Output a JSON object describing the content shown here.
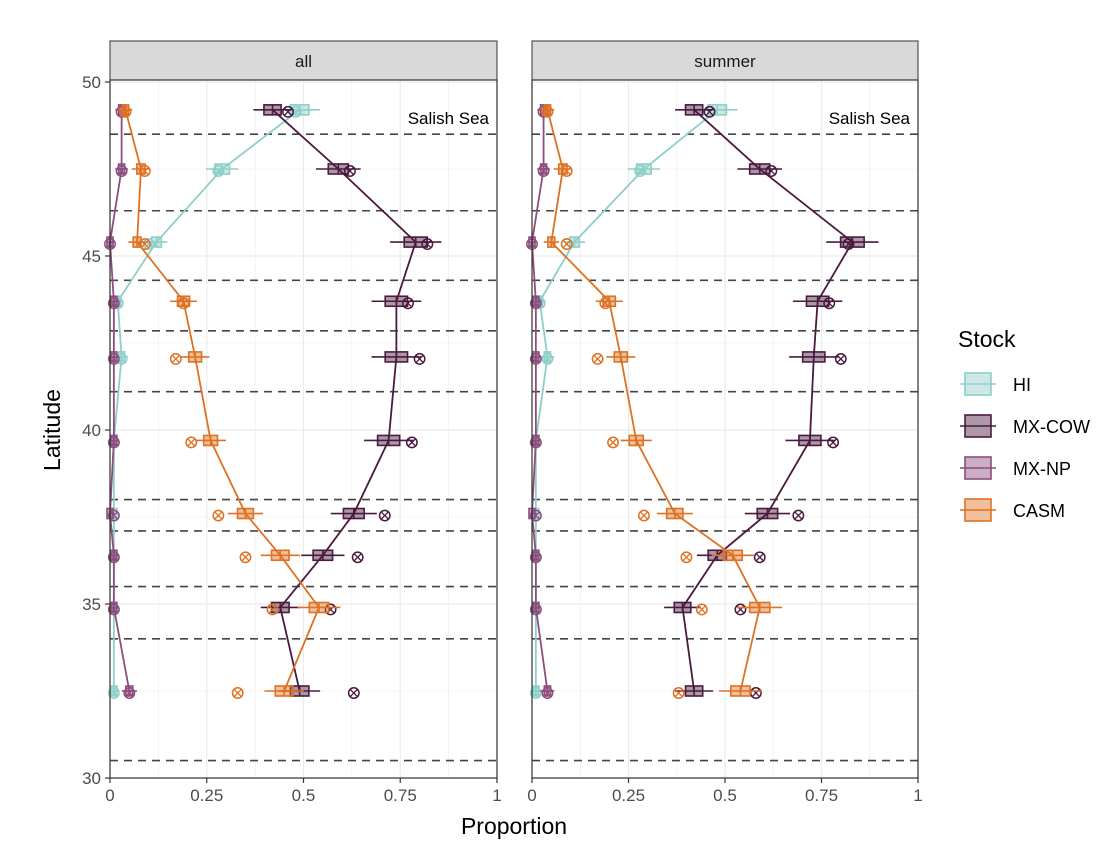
{
  "chart_data": {
    "type": "scatter",
    "xlabel": "Proportion",
    "ylabel": "Latitude",
    "xlim": [
      0,
      1
    ],
    "ylim": [
      30,
      52
    ],
    "x_ticks": [
      "0",
      "0.25",
      "0.5",
      "0.75",
      "1"
    ],
    "y_ticks": [
      "30",
      "35",
      "40",
      "45",
      "50"
    ],
    "grid": true,
    "legend_position": "right",
    "legend": {
      "title": "Stock",
      "entries": [
        {
          "name": "HI",
          "color": "#8ecfc9"
        },
        {
          "name": "MX-COW",
          "color": "#4a1a3f"
        },
        {
          "name": "MX-NP",
          "color": "#8c4e7e"
        },
        {
          "name": "CASM",
          "color": "#de7224"
        }
      ]
    },
    "region_label": "Salish Sea",
    "dashed_lines_latitude": [
      48.5,
      46.3,
      44.3,
      42.85,
      41.1,
      38.0,
      37.1,
      35.5,
      34.0,
      30.5
    ],
    "latitudes": [
      49.2,
      47.5,
      45.4,
      43.7,
      42.1,
      39.7,
      37.6,
      36.4,
      34.9,
      32.5
    ],
    "facets": [
      {
        "title": "all",
        "series": [
          {
            "name": "HI",
            "values": [
              0.49,
              0.29,
              0.12,
              0.02,
              0.03,
              0.01,
              0.01,
              0.01,
              0.01,
              0.01
            ],
            "hollow": [
              0.48,
              0.28,
              0.1,
              0.02,
              0.03,
              0.01,
              0.01,
              0.01,
              0.01,
              0.01
            ]
          },
          {
            "name": "MX-COW",
            "values": [
              0.42,
              0.59,
              0.79,
              0.74,
              0.74,
              0.72,
              0.63,
              0.55,
              0.44,
              0.49
            ],
            "hollow": [
              0.46,
              0.62,
              0.82,
              0.77,
              0.8,
              0.78,
              0.71,
              0.64,
              0.57,
              0.63
            ]
          },
          {
            "name": "MX-NP",
            "values": [
              0.03,
              0.03,
              0.0,
              0.01,
              0.01,
              0.01,
              0.0,
              0.01,
              0.01,
              0.05
            ],
            "hollow": [
              0.03,
              0.03,
              0.0,
              0.01,
              0.01,
              0.01,
              0.01,
              0.01,
              0.01,
              0.05
            ]
          },
          {
            "name": "CASM",
            "values": [
              0.04,
              0.08,
              0.07,
              0.19,
              0.22,
              0.26,
              0.35,
              0.44,
              0.54,
              0.45
            ],
            "hollow": [
              0.04,
              0.09,
              0.09,
              0.19,
              0.17,
              0.21,
              0.28,
              0.35,
              0.42,
              0.33
            ]
          }
        ]
      },
      {
        "title": "summer",
        "series": [
          {
            "name": "HI",
            "values": [
              0.48,
              0.29,
              0.11,
              0.02,
              0.04,
              0.01,
              0.01,
              0.01,
              0.01,
              0.01
            ],
            "hollow": [
              0.46,
              0.28,
              0.09,
              0.02,
              0.04,
              0.01,
              0.01,
              0.01,
              0.01,
              0.01
            ]
          },
          {
            "name": "MX-COW",
            "values": [
              0.42,
              0.59,
              0.83,
              0.74,
              0.73,
              0.72,
              0.61,
              0.48,
              0.39,
              0.42
            ],
            "hollow": [
              0.46,
              0.62,
              0.82,
              0.77,
              0.8,
              0.78,
              0.69,
              0.59,
              0.54,
              0.58
            ]
          },
          {
            "name": "MX-NP",
            "values": [
              0.03,
              0.03,
              0.0,
              0.01,
              0.01,
              0.01,
              0.0,
              0.01,
              0.01,
              0.04
            ],
            "hollow": [
              0.03,
              0.03,
              0.0,
              0.01,
              0.01,
              0.01,
              0.01,
              0.01,
              0.01,
              0.04
            ]
          },
          {
            "name": "CASM",
            "values": [
              0.04,
              0.08,
              0.05,
              0.2,
              0.23,
              0.27,
              0.37,
              0.52,
              0.59,
              0.54
            ],
            "hollow": [
              0.04,
              0.09,
              0.09,
              0.19,
              0.17,
              0.21,
              0.29,
              0.4,
              0.44,
              0.38
            ]
          }
        ]
      }
    ]
  }
}
